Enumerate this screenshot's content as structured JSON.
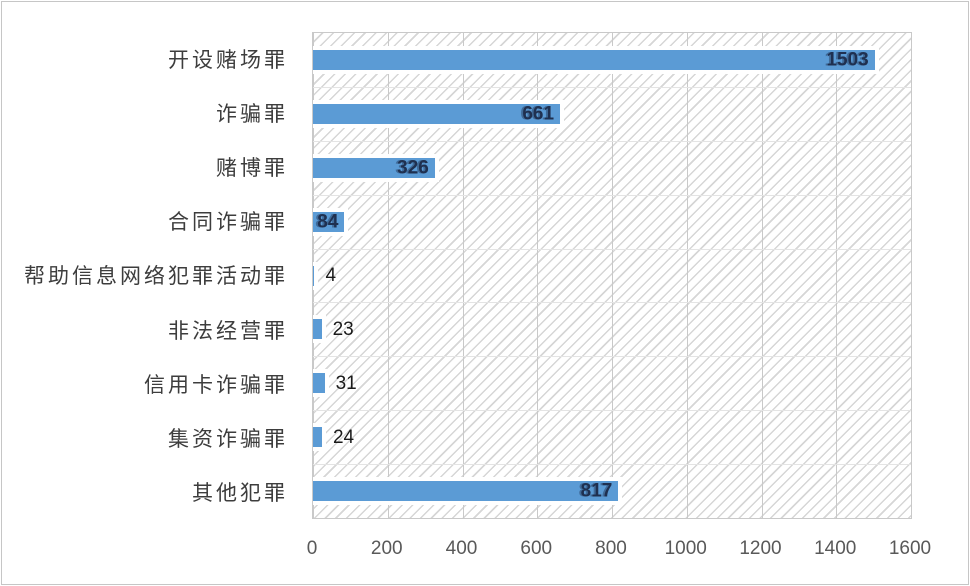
{
  "chart_data": {
    "type": "bar",
    "orientation": "horizontal",
    "title": "",
    "xlabel": "",
    "ylabel": "",
    "categories": [
      "开设赌场罪",
      "诈骗罪",
      "赌博罪",
      "合同诈骗罪",
      "帮助信息网络犯罪活动罪",
      "非法经营罪",
      "信用卡诈骗罪",
      "集资诈骗罪",
      "其他犯罪"
    ],
    "values": [
      1503,
      661,
      326,
      84,
      4,
      23,
      31,
      24,
      817
    ],
    "x_ticks": [
      0,
      200,
      400,
      600,
      800,
      1000,
      1200,
      1400,
      1600
    ],
    "xlim": [
      0,
      1600
    ],
    "grid": true,
    "legend": "none",
    "plot_background": "diagonal-hatch",
    "colors": {
      "bar": "#5b9bd5",
      "data_label_inside": "#1f3050",
      "data_label_outside": "#1a1a1a",
      "category_label": "#3d3d3d",
      "tick_label": "#595959",
      "gridline": "#c9c9c9",
      "hatch_line": "#d6d6d6"
    }
  }
}
